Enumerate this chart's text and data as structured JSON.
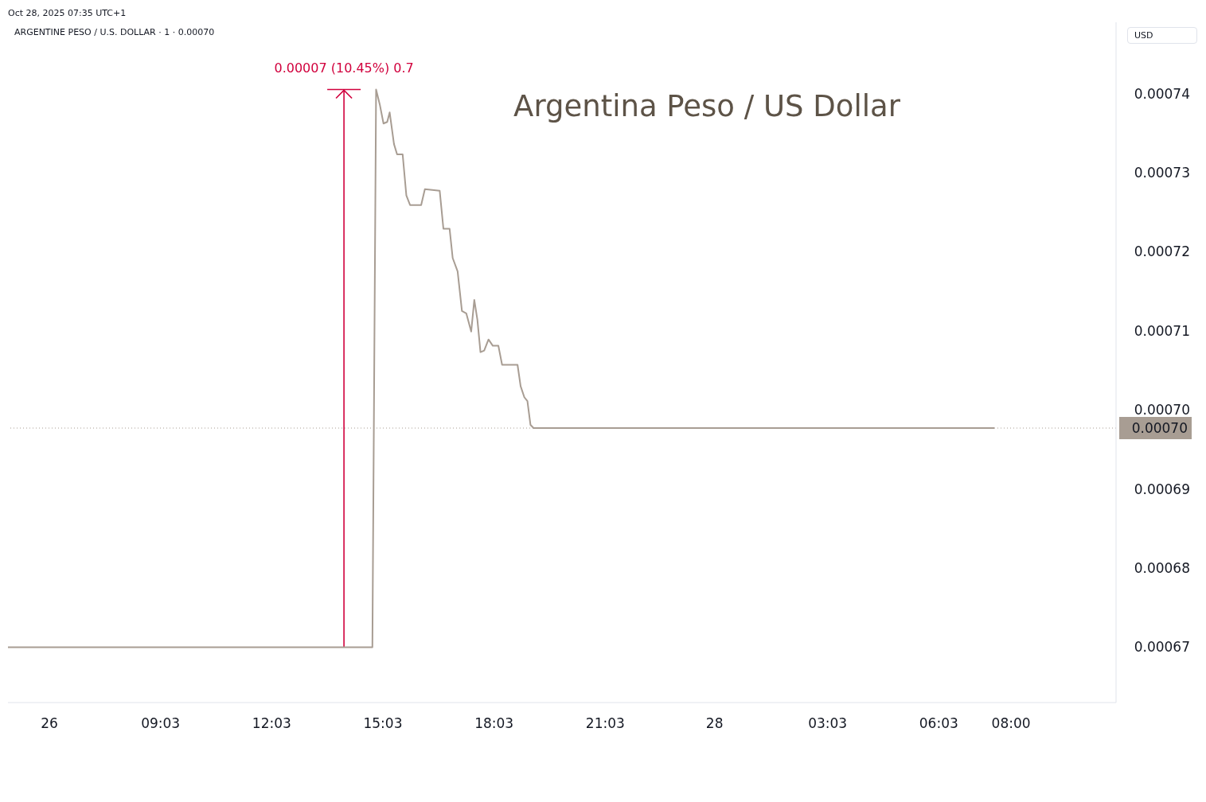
{
  "chart_data": {
    "type": "line",
    "title": "Argentina Peso / US Dollar",
    "annotations": [
      "ARGENTINE PESO / U.S. DOLLAR · 1 · 0.00070",
      "USD",
      "Oct 28, 2025 07:35 UTC+1"
    ],
    "x": [
      "2025-10-27T04:56",
      "2025-10-27T14:46",
      "2025-10-27T14:52",
      "2025-10-27T14:58",
      "2025-10-27T15:04",
      "2025-10-27T15:10",
      "2025-10-27T15:14",
      "2025-10-27T15:21",
      "2025-10-27T15:26",
      "2025-10-27T15:35",
      "2025-10-27T15:41",
      "2025-10-27T15:47",
      "2025-10-27T16:05",
      "2025-10-27T16:11",
      "2025-10-27T16:35",
      "2025-10-27T16:41",
      "2025-10-27T16:51",
      "2025-10-27T16:56",
      "2025-10-27T17:04",
      "2025-10-27T17:11",
      "2025-10-27T17:18",
      "2025-10-27T17:26",
      "2025-10-27T17:31",
      "2025-10-27T17:36",
      "2025-10-27T17:41",
      "2025-10-27T17:47",
      "2025-10-27T17:54",
      "2025-10-27T18:01",
      "2025-10-27T18:10",
      "2025-10-27T18:16",
      "2025-10-27T18:41",
      "2025-10-27T18:46",
      "2025-10-27T18:52",
      "2025-10-27T18:57",
      "2025-10-27T19:02",
      "2025-10-27T19:07",
      "2025-10-28T07:33"
    ],
    "series": [
      {
        "color": "#a89d93",
        "values": [
          0.00067,
          0.00067,
          0.0007405,
          0.0007386,
          0.0007362,
          0.0007364,
          0.0007376,
          0.0007336,
          0.0007323,
          0.0007323,
          0.0007271,
          0.0007259,
          0.0007259,
          0.0007279,
          0.0007277,
          0.0007229,
          0.0007229,
          0.0007192,
          0.0007175,
          0.0007125,
          0.0007122,
          0.0007099,
          0.0007139,
          0.0007114,
          0.0007073,
          0.0007075,
          0.0007089,
          0.0007081,
          0.0007081,
          0.0007057,
          0.0007057,
          0.000703,
          0.0007016,
          0.0007011,
          0.0006981,
          0.0006977,
          0.0006977
        ]
      }
    ],
    "xlim": [
      "2025-10-27T04:56",
      "2025-10-28T10:50"
    ],
    "xticks": [
      {
        "value": "2025-10-27T06:03",
        "label": "26"
      },
      {
        "value": "2025-10-27T09:03",
        "label": "09:03"
      },
      {
        "value": "2025-10-27T12:03",
        "label": "12:03"
      },
      {
        "value": "2025-10-27T15:03",
        "label": "15:03"
      },
      {
        "value": "2025-10-27T18:03",
        "label": "18:03"
      },
      {
        "value": "2025-10-27T21:03",
        "label": "21:03"
      },
      {
        "value": "2025-10-28T00:00",
        "label": "28"
      },
      {
        "value": "2025-10-28T03:03",
        "label": "03:03"
      },
      {
        "value": "2025-10-28T06:03",
        "label": "06:03"
      },
      {
        "value": "2025-10-28T08:00",
        "label": "08:00"
      }
    ],
    "ylim": [
      0.000663,
      0.000749
    ],
    "yticks": [
      0.00067,
      0.00068,
      0.00069,
      {
        "value": 0.0007,
        "label": "0.00070"
      },
      0.00071,
      0.00072,
      0.00073,
      0.00074
    ],
    "ref_lines": [
      {
        "axis": "y",
        "value": 0.0006977,
        "label": "0.00070",
        "color": "#a89d93",
        "line_style": "dotted"
      },
      {
        "axis": "x",
        "value": "2025-10-27T14:00",
        "label": "0.00007 (10.45%) 0.7",
        "color": "#d1003d",
        "line_style": "solid"
      }
    ],
    "marker": "none",
    "line_style": "solid"
  }
}
